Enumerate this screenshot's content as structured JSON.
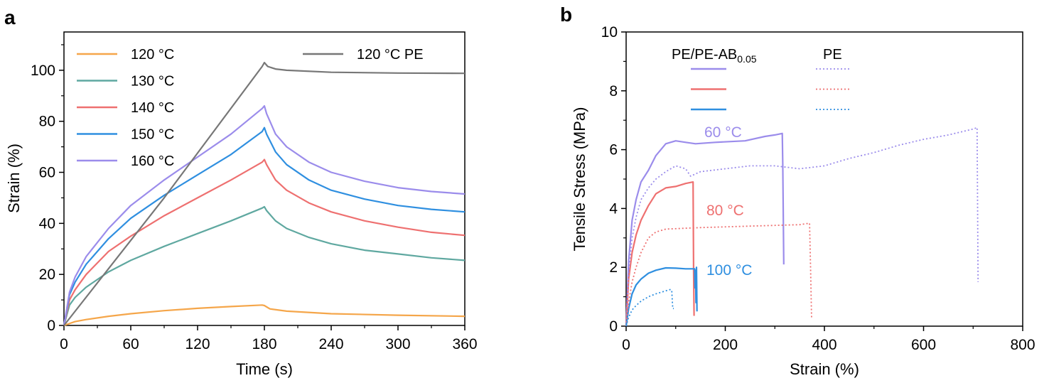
{
  "panel_labels": [
    "a",
    "b"
  ],
  "chart_data": [
    {
      "panel": "a",
      "type": "line",
      "xlabel": "Time (s)",
      "ylabel": "Strain (%)",
      "xlim": [
        0,
        360
      ],
      "ylim": [
        0,
        115
      ],
      "xticks": [
        0,
        60,
        120,
        180,
        240,
        300,
        360
      ],
      "yticks": [
        0,
        20,
        40,
        60,
        80,
        100
      ],
      "grid": false,
      "legend_position": "top",
      "series": [
        {
          "name": "120 °C",
          "color": "#F5A64A",
          "x": [
            0,
            10,
            20,
            40,
            60,
            90,
            120,
            150,
            178,
            180,
            185,
            200,
            240,
            300,
            360
          ],
          "y": [
            0,
            1.5,
            2.3,
            3.6,
            4.6,
            5.8,
            6.7,
            7.4,
            8.0,
            7.8,
            6.5,
            5.6,
            4.6,
            4.0,
            3.6
          ]
        },
        {
          "name": "130 °C",
          "color": "#5FA8A0",
          "x": [
            0,
            5,
            10,
            20,
            40,
            60,
            90,
            120,
            150,
            178,
            180,
            182,
            190,
            200,
            220,
            240,
            270,
            300,
            330,
            360
          ],
          "y": [
            0,
            8,
            11,
            15,
            21,
            25.5,
            31,
            36,
            41,
            46,
            46.5,
            45,
            41,
            38,
            34.5,
            32,
            29.5,
            28,
            26.5,
            25.5
          ]
        },
        {
          "name": "140 °C",
          "color": "#EE7070",
          "x": [
            0,
            5,
            10,
            20,
            40,
            60,
            90,
            120,
            150,
            178,
            180,
            182,
            190,
            200,
            220,
            240,
            270,
            300,
            330,
            360
          ],
          "y": [
            0,
            10,
            14,
            20,
            29,
            35,
            43,
            50,
            57,
            64,
            65,
            63,
            57,
            53,
            48,
            44.5,
            41,
            38.5,
            36.5,
            35.3
          ]
        },
        {
          "name": "150 °C",
          "color": "#2F8FE0",
          "x": [
            0,
            5,
            10,
            20,
            40,
            60,
            90,
            120,
            150,
            178,
            180,
            182,
            190,
            200,
            220,
            240,
            270,
            300,
            330,
            360
          ],
          "y": [
            0,
            12,
            17,
            24,
            34,
            42,
            51,
            59,
            67,
            76,
            77.5,
            75,
            68,
            63,
            57,
            53,
            49.5,
            47,
            45.5,
            44.5
          ]
        },
        {
          "name": "160 °C",
          "color": "#9B8CEB",
          "x": [
            0,
            5,
            10,
            20,
            40,
            60,
            90,
            120,
            150,
            178,
            180,
            182,
            190,
            200,
            220,
            240,
            270,
            300,
            330,
            360
          ],
          "y": [
            0,
            13,
            19,
            27,
            38,
            47,
            57,
            66,
            75,
            85,
            86,
            83,
            75,
            70,
            64,
            60,
            56.5,
            54,
            52.5,
            51.5
          ]
        },
        {
          "name": "120 °C PE",
          "color": "#777777",
          "x": [
            0,
            90,
            178,
            180,
            183,
            190,
            200,
            240,
            300,
            360
          ],
          "y": [
            0,
            50,
            101.5,
            103,
            101.5,
            100.5,
            100,
            99.2,
            98.9,
            98.8
          ]
        }
      ]
    },
    {
      "panel": "b",
      "type": "line",
      "xlabel": "Strain (%)",
      "ylabel": "Tensile Stress (MPa)",
      "xlim": [
        0,
        800
      ],
      "ylim": [
        0,
        10
      ],
      "xticks": [
        0,
        200,
        400,
        600,
        800
      ],
      "yticks": [
        0,
        2,
        4,
        6,
        8,
        10
      ],
      "grid": false,
      "legend_headers": {
        "blend_main": "PE/PE-AB",
        "blend_sub": "0.05",
        "pe": "PE"
      },
      "annotations": [
        {
          "text": "60 °C",
          "color": "#9B8CEB"
        },
        {
          "text": "80 °C",
          "color": "#EE7070"
        },
        {
          "text": "100 °C",
          "color": "#2F8FE0"
        }
      ],
      "series": [
        {
          "material": "PE/PE-AB0.05",
          "temperature": "60 °C",
          "color": "#9B8CEB",
          "style": "solid",
          "x": [
            0,
            5,
            12,
            20,
            30,
            45,
            60,
            80,
            100,
            120,
            140,
            180,
            240,
            280,
            300,
            315,
            316,
            318
          ],
          "y": [
            0,
            2.2,
            3.6,
            4.3,
            4.9,
            5.3,
            5.8,
            6.2,
            6.3,
            6.25,
            6.2,
            6.25,
            6.3,
            6.45,
            6.5,
            6.55,
            5.5,
            2.1
          ]
        },
        {
          "material": "PE/PE-AB0.05",
          "temperature": "80 °C",
          "color": "#EE7070",
          "style": "solid",
          "x": [
            0,
            5,
            12,
            20,
            30,
            45,
            60,
            80,
            100,
            120,
            135,
            136,
            137
          ],
          "y": [
            0,
            1.6,
            2.5,
            3.1,
            3.6,
            4.1,
            4.5,
            4.7,
            4.75,
            4.85,
            4.9,
            2.0,
            0.35
          ]
        },
        {
          "material": "PE/PE-AB0.05",
          "temperature": "100 °C",
          "color": "#2F8FE0",
          "style": "solid",
          "x": [
            0,
            5,
            12,
            20,
            30,
            45,
            60,
            80,
            100,
            120,
            138,
            139,
            140,
            141,
            142,
            143
          ],
          "y": [
            0,
            0.6,
            1.1,
            1.4,
            1.6,
            1.8,
            1.9,
            1.98,
            1.97,
            1.95,
            1.95,
            1.3,
            1.9,
            0.8,
            2.0,
            0.5
          ]
        },
        {
          "material": "PE",
          "temperature": "60 °C",
          "color": "#9B8CEB",
          "style": "dotted",
          "x": [
            0,
            5,
            12,
            20,
            30,
            45,
            60,
            80,
            100,
            120,
            130,
            150,
            200,
            250,
            300,
            350,
            400,
            420,
            450,
            500,
            550,
            600,
            650,
            700,
            708,
            710
          ],
          "y": [
            0,
            1.8,
            3.0,
            3.7,
            4.3,
            4.7,
            5.0,
            5.25,
            5.45,
            5.35,
            5.1,
            5.25,
            5.35,
            5.45,
            5.45,
            5.35,
            5.45,
            5.55,
            5.7,
            5.9,
            6.15,
            6.35,
            6.5,
            6.7,
            6.75,
            1.5
          ]
        },
        {
          "material": "PE",
          "temperature": "80 °C",
          "color": "#EE7070",
          "style": "dotted",
          "x": [
            0,
            5,
            12,
            20,
            30,
            45,
            60,
            80,
            150,
            250,
            350,
            370,
            372,
            374
          ],
          "y": [
            0,
            0.8,
            1.5,
            2.0,
            2.5,
            3.0,
            3.2,
            3.3,
            3.35,
            3.4,
            3.45,
            3.5,
            2.0,
            0.3
          ]
        },
        {
          "material": "PE",
          "temperature": "100 °C",
          "color": "#2F8FE0",
          "style": "dotted",
          "x": [
            0,
            5,
            12,
            20,
            30,
            45,
            60,
            80,
            90,
            92,
            94,
            96
          ],
          "y": [
            0,
            0.3,
            0.55,
            0.7,
            0.85,
            1.0,
            1.1,
            1.2,
            1.25,
            1.2,
            0.6,
            0.6
          ]
        }
      ]
    }
  ]
}
